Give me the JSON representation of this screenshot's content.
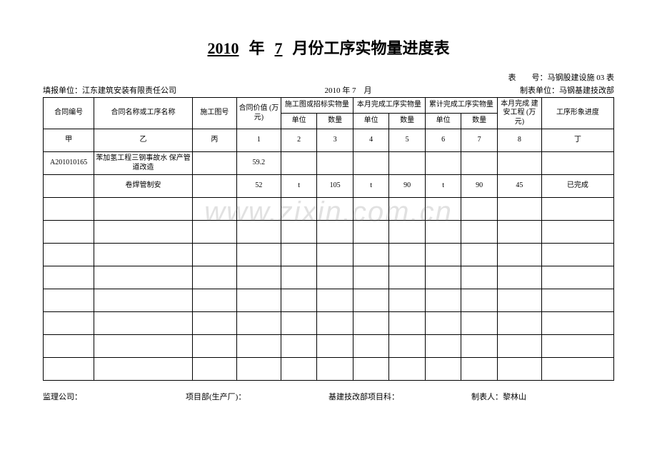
{
  "title": {
    "year": "2010",
    "year_label": "年",
    "month": "7",
    "month_label": "月份工序实物量进度表"
  },
  "meta_top_right": "表　　号：马钢股建设施 03 表",
  "meta_left": "填报单位：江东建筑安装有限责任公司",
  "meta_mid": "2010 年 7　月",
  "meta_right": "制表单位：马钢基建技改部",
  "headers": {
    "col1": "合同编号",
    "col2": "合同名称或工序名称",
    "col3": "施工图号",
    "col4": "合同价值\n(万元)",
    "grp1": "施工图或招标实物量",
    "grp2": "本月完成工序实物量",
    "grp3": "累计完成工序实物量",
    "col11": "本月完成\n建安工程\n(万元)",
    "col12": "工序形象进度",
    "unit": "单位",
    "qty": "数量"
  },
  "index_row": {
    "c1": "甲",
    "c2": "乙",
    "c3": "丙",
    "c4": "1",
    "c5": "2",
    "c6": "3",
    "c7": "4",
    "c8": "5",
    "c9": "6",
    "c10": "7",
    "c11": "8",
    "c12": "丁"
  },
  "rows": [
    {
      "c1": "A201010165",
      "c2": "苯加氢工程三钢事故水\n保产管道改造",
      "c3": "",
      "c4": "59.2",
      "c5": "",
      "c6": "",
      "c7": "",
      "c8": "",
      "c9": "",
      "c10": "",
      "c11": "",
      "c12": ""
    },
    {
      "c1": "",
      "c2": "卷焊管制安",
      "c3": "",
      "c4": "52",
      "c5": "t",
      "c6": "105",
      "c7": "t",
      "c8": "90",
      "c9": "t",
      "c10": "90",
      "c11": "45",
      "c12": "已完成"
    },
    {
      "c1": "",
      "c2": "",
      "c3": "",
      "c4": "",
      "c5": "",
      "c6": "",
      "c7": "",
      "c8": "",
      "c9": "",
      "c10": "",
      "c11": "",
      "c12": ""
    },
    {
      "c1": "",
      "c2": "",
      "c3": "",
      "c4": "",
      "c5": "",
      "c6": "",
      "c7": "",
      "c8": "",
      "c9": "",
      "c10": "",
      "c11": "",
      "c12": ""
    },
    {
      "c1": "",
      "c2": "",
      "c3": "",
      "c4": "",
      "c5": "",
      "c6": "",
      "c7": "",
      "c8": "",
      "c9": "",
      "c10": "",
      "c11": "",
      "c12": ""
    },
    {
      "c1": "",
      "c2": "",
      "c3": "",
      "c4": "",
      "c5": "",
      "c6": "",
      "c7": "",
      "c8": "",
      "c9": "",
      "c10": "",
      "c11": "",
      "c12": ""
    },
    {
      "c1": "",
      "c2": "",
      "c3": "",
      "c4": "",
      "c5": "",
      "c6": "",
      "c7": "",
      "c8": "",
      "c9": "",
      "c10": "",
      "c11": "",
      "c12": ""
    },
    {
      "c1": "",
      "c2": "",
      "c3": "",
      "c4": "",
      "c5": "",
      "c6": "",
      "c7": "",
      "c8": "",
      "c9": "",
      "c10": "",
      "c11": "",
      "c12": ""
    },
    {
      "c1": "",
      "c2": "",
      "c3": "",
      "c4": "",
      "c5": "",
      "c6": "",
      "c7": "",
      "c8": "",
      "c9": "",
      "c10": "",
      "c11": "",
      "c12": ""
    },
    {
      "c1": "",
      "c2": "",
      "c3": "",
      "c4": "",
      "c5": "",
      "c6": "",
      "c7": "",
      "c8": "",
      "c9": "",
      "c10": "",
      "c11": "",
      "c12": ""
    }
  ],
  "footer": {
    "f1": "监理公司：",
    "f2": "项目部(生产厂)：",
    "f3": "基建技改部项目科：",
    "f4": "制表人：黎林山"
  },
  "watermark": "www.zixin.com.cn",
  "col_widths": [
    "62",
    "120",
    "54",
    "54",
    "44",
    "44",
    "44",
    "44",
    "44",
    "44",
    "54",
    "88"
  ]
}
